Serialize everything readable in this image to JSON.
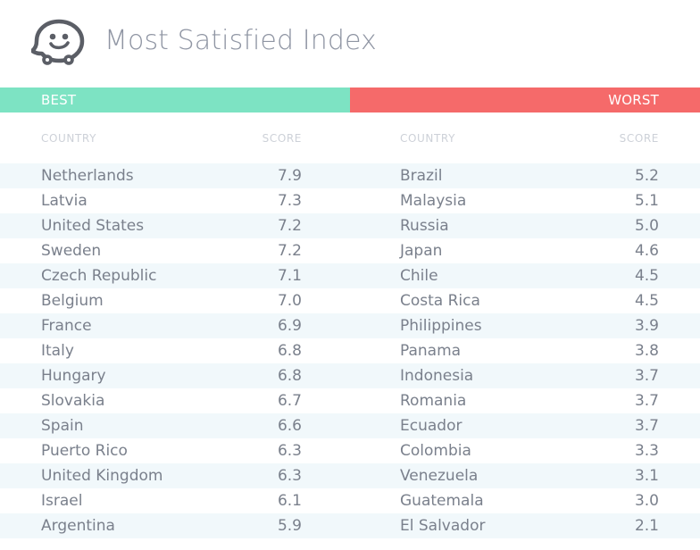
{
  "header": {
    "title": "Most Satisfied Index"
  },
  "best": {
    "label": "BEST",
    "color": "#7de3c3",
    "column_headers": {
      "country": "COUNTRY",
      "score": "SCORE"
    },
    "rows": [
      {
        "country": "Netherlands",
        "score": "7.9"
      },
      {
        "country": "Latvia",
        "score": "7.3"
      },
      {
        "country": "United States",
        "score": "7.2"
      },
      {
        "country": "Sweden",
        "score": "7.2"
      },
      {
        "country": "Czech Republic",
        "score": "7.1"
      },
      {
        "country": "Belgium",
        "score": "7.0"
      },
      {
        "country": "France",
        "score": "6.9"
      },
      {
        "country": "Italy",
        "score": "6.8"
      },
      {
        "country": "Hungary",
        "score": "6.8"
      },
      {
        "country": "Slovakia",
        "score": "6.7"
      },
      {
        "country": "Spain",
        "score": "6.6"
      },
      {
        "country": "Puerto Rico",
        "score": "6.3"
      },
      {
        "country": "United Kingdom",
        "score": "6.3"
      },
      {
        "country": "Israel",
        "score": "6.1"
      },
      {
        "country": "Argentina",
        "score": "5.9"
      }
    ]
  },
  "worst": {
    "label": "WORST",
    "color": "#f56a6a",
    "column_headers": {
      "country": "COUNTRY",
      "score": "SCORE"
    },
    "rows": [
      {
        "country": "Brazil",
        "score": "5.2"
      },
      {
        "country": "Malaysia",
        "score": "5.1"
      },
      {
        "country": "Russia",
        "score": "5.0"
      },
      {
        "country": "Japan",
        "score": "4.6"
      },
      {
        "country": "Chile",
        "score": "4.5"
      },
      {
        "country": "Costa Rica",
        "score": "4.5"
      },
      {
        "country": "Philippines",
        "score": "3.9"
      },
      {
        "country": "Panama",
        "score": "3.8"
      },
      {
        "country": "Indonesia",
        "score": "3.7"
      },
      {
        "country": "Romania",
        "score": "3.7"
      },
      {
        "country": "Ecuador",
        "score": "3.7"
      },
      {
        "country": "Colombia",
        "score": "3.3"
      },
      {
        "country": "Venezuela",
        "score": "3.1"
      },
      {
        "country": "Guatemala",
        "score": "3.0"
      },
      {
        "country": "El Salvador",
        "score": "2.1"
      }
    ]
  },
  "icons": {
    "logo": "waze-smiley-icon"
  }
}
